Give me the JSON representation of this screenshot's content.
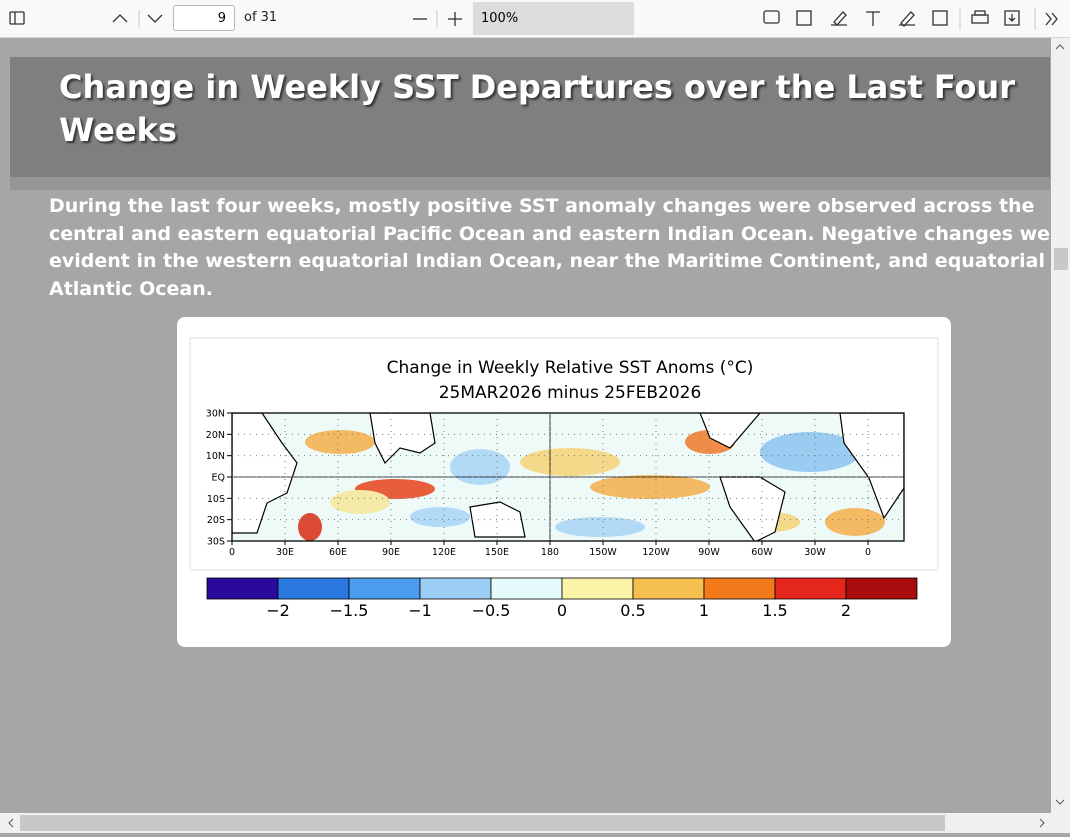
{
  "toolbar": {
    "page_number": "9",
    "page_count": "of 31",
    "zoom": "100%"
  },
  "slide": {
    "title_lines": [
      "Change in Weekly SST Departures over the Last Four",
      "Weeks"
    ],
    "body_lines": [
      "During the last four weeks, mostly positive SST anomaly changes were observed across the",
      "central and eastern equatorial Pacific Ocean and eastern Indian Ocean.  Negative changes were",
      "evident in the western equatorial Indian Ocean, near the Maritime Continent, and equatorial",
      "Atlantic Ocean."
    ],
    "figure": {
      "title_lines": [
        "Change in Weekly Relative SST Anoms (°C)",
        "25MAR2026 minus 25FEB2026"
      ],
      "lat_labels": [
        "30N",
        "20N",
        "10N",
        "EQ",
        "10S",
        "20S",
        "30S"
      ],
      "lon_labels": [
        "0",
        "30E",
        "60E",
        "90E",
        "120E",
        "150E",
        "180",
        "150W",
        "120W",
        "90W",
        "60W",
        "30W",
        "0"
      ],
      "colorbar_labels": [
        "−2",
        "−1.5",
        "−1",
        "−0.5",
        "0",
        "0.5",
        "1",
        "1.5",
        "2"
      ]
    }
  }
}
